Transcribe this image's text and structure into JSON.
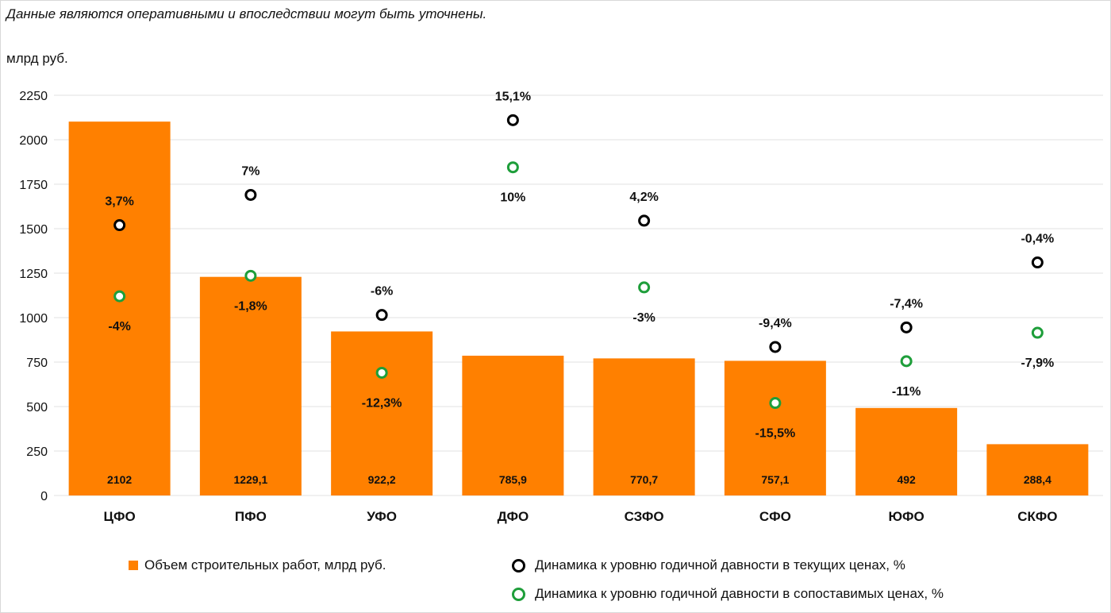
{
  "header": {
    "note": "Данные являются оперативными и впоследствии могут быть уточнены.",
    "unit": "млрд руб."
  },
  "colors": {
    "bar": "#ff8000",
    "current": "#000000",
    "comparable": "#1e9e3a",
    "grid": "#e2e2e2"
  },
  "chart_data": {
    "type": "bar",
    "categories": [
      "ЦФО",
      "ПФО",
      "УФО",
      "ДФО",
      "СЗФО",
      "СФО",
      "ЮФО",
      "СКФО"
    ],
    "ylim": [
      0,
      2250
    ],
    "yticks": [
      0,
      250,
      500,
      750,
      1000,
      1250,
      1500,
      1750,
      2000,
      2250
    ],
    "grid": true,
    "legend_position": "bottom",
    "series": [
      {
        "name": "Объем строительных работ, млрд руб.",
        "type": "bar",
        "values": [
          2102,
          1229.1,
          922.2,
          785.9,
          770.7,
          757.1,
          492,
          288.4
        ],
        "labels": [
          "2102",
          "1229,1",
          "922,2",
          "785,9",
          "770,7",
          "757,1",
          "492",
          "288,4"
        ]
      },
      {
        "name": "Динамика к уровню годичной давности в текущих ценах, %",
        "type": "scatter",
        "values": [
          3.7,
          7,
          -6,
          15.1,
          4.2,
          -9.4,
          -7.4,
          -0.4
        ],
        "y_positions": [
          1520,
          1690,
          1015,
          2110,
          1545,
          835,
          945,
          1310
        ],
        "labels": [
          "3,7%",
          "7%",
          "-6%",
          "15,1%",
          "4,2%",
          "-9,4%",
          "-7,4%",
          "-0,4%"
        ],
        "label_side": [
          "above",
          "above",
          "above",
          "above",
          "above",
          "above",
          "above",
          "above"
        ]
      },
      {
        "name": "Динамика к уровню годичной давности в сопоставимых ценах, %",
        "type": "scatter",
        "values": [
          -4,
          -1.8,
          -12.3,
          10,
          -3,
          -15.5,
          -11,
          -7.9
        ],
        "y_positions": [
          1120,
          1235,
          690,
          1845,
          1170,
          520,
          755,
          915
        ],
        "labels": [
          "-4%",
          "-1,8%",
          "-12,3%",
          "10%",
          "-3%",
          "-15,5%",
          "-11%",
          "-7,9%"
        ],
        "label_side": [
          "below",
          "below",
          "below",
          "below",
          "below",
          "below",
          "below",
          "below"
        ]
      }
    ]
  }
}
